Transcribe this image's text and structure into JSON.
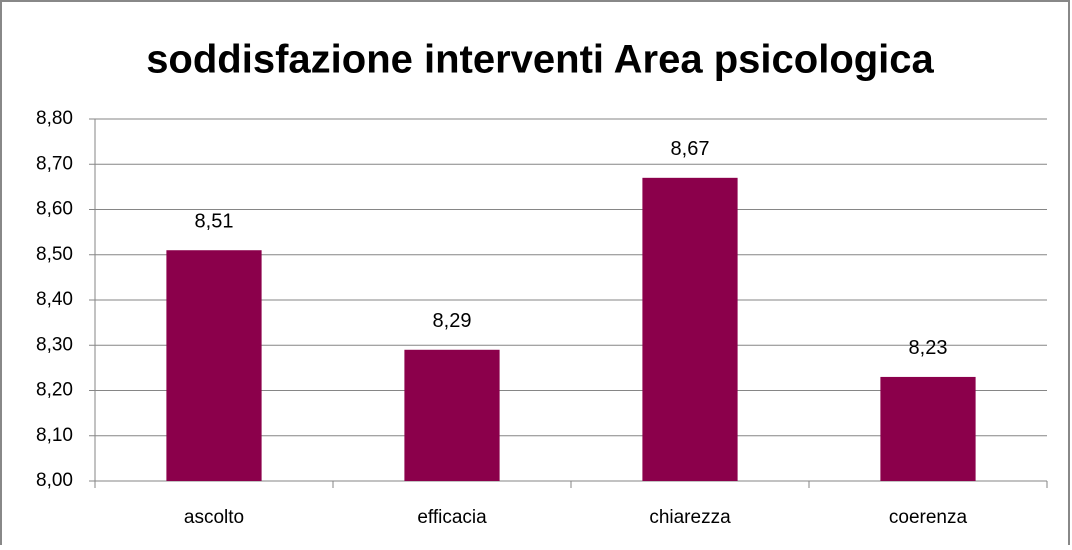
{
  "chart_data": {
    "type": "bar",
    "title": "soddisfazione interventi  Area psicologica",
    "categories": [
      "ascolto",
      "efficacia",
      "chiarezza",
      "coerenza"
    ],
    "values": [
      8.51,
      8.29,
      8.67,
      8.23
    ],
    "value_labels": [
      "8,51",
      "8,29",
      "8,67",
      "8,23"
    ],
    "color": "#8b004b",
    "ylim": [
      8.0,
      8.8
    ],
    "yticks": [
      {
        "value": 8.0,
        "label": "8,00"
      },
      {
        "value": 8.1,
        "label": "8,10"
      },
      {
        "value": 8.2,
        "label": "8,20"
      },
      {
        "value": 8.3,
        "label": "8,30"
      },
      {
        "value": 8.4,
        "label": "8,40"
      },
      {
        "value": 8.5,
        "label": "8,50"
      },
      {
        "value": 8.6,
        "label": "8,60"
      },
      {
        "value": 8.7,
        "label": "8,70"
      },
      {
        "value": 8.8,
        "label": "8,80"
      }
    ],
    "grid": true
  }
}
